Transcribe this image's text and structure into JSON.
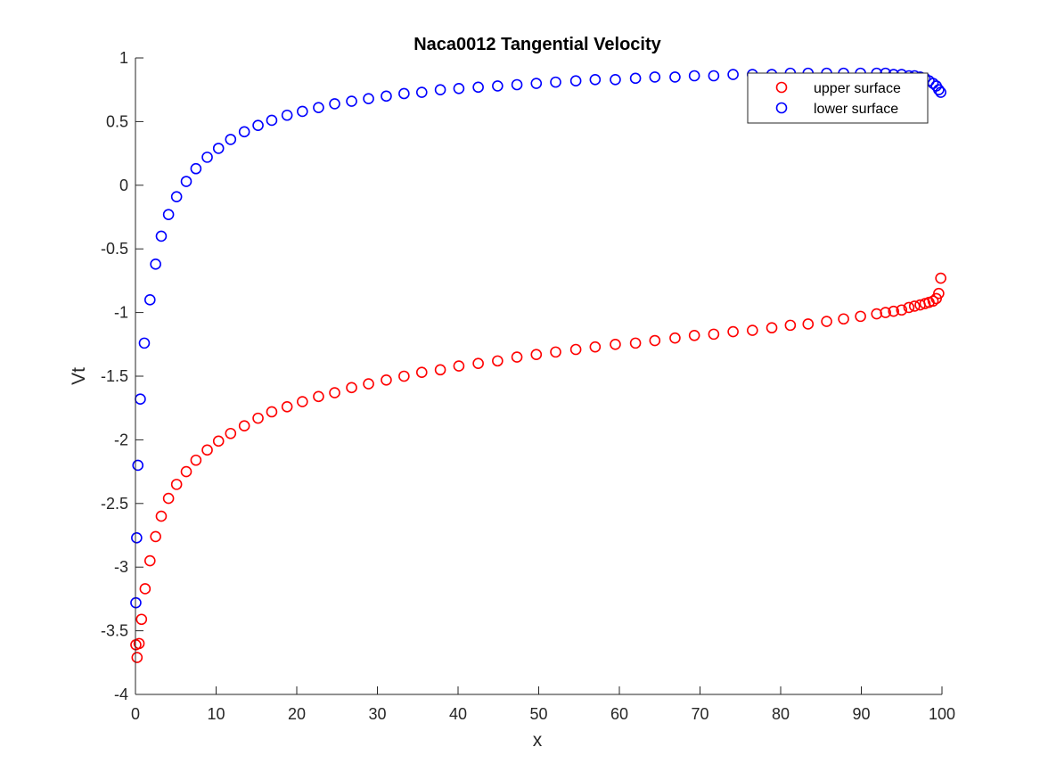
{
  "chart_data": {
    "type": "scatter",
    "title": "Naca0012 Tangential Velocity",
    "xlabel": "x",
    "ylabel": "Vt",
    "xlim": [
      0,
      100
    ],
    "ylim": [
      -4,
      1
    ],
    "xticks": [
      "0",
      "10",
      "20",
      "30",
      "40",
      "50",
      "60",
      "70",
      "80",
      "90",
      "100"
    ],
    "yticks": [
      "-4",
      "-3.5",
      "-3",
      "-2.5",
      "-2",
      "-1.5",
      "-1",
      "-0.5",
      "0",
      "0.5",
      "1"
    ],
    "grid": false,
    "legend_position": "top-right",
    "marker": "open-circle",
    "series": [
      {
        "name": "upper surface",
        "color": "#ff0000",
        "x": [
          0.05,
          0.2,
          0.45,
          0.75,
          1.2,
          1.8,
          2.5,
          3.2,
          4.1,
          5.1,
          6.3,
          7.5,
          8.9,
          10.3,
          11.8,
          13.5,
          15.2,
          16.9,
          18.8,
          20.7,
          22.7,
          24.7,
          26.8,
          28.9,
          31.1,
          33.3,
          35.5,
          37.8,
          40.1,
          42.5,
          44.9,
          47.3,
          49.7,
          52.1,
          54.6,
          57.0,
          59.5,
          62.0,
          64.4,
          66.9,
          69.3,
          71.7,
          74.1,
          76.5,
          78.9,
          81.2,
          83.4,
          85.7,
          87.8,
          89.9,
          91.9,
          93.0,
          94.0,
          95.0,
          95.9,
          96.6,
          97.3,
          97.9,
          98.4,
          98.9,
          99.3,
          99.6,
          99.85
        ],
        "y": [
          -3.61,
          -3.71,
          -3.6,
          -3.41,
          -3.17,
          -2.95,
          -2.76,
          -2.6,
          -2.46,
          -2.35,
          -2.25,
          -2.16,
          -2.08,
          -2.01,
          -1.95,
          -1.89,
          -1.83,
          -1.78,
          -1.74,
          -1.7,
          -1.66,
          -1.63,
          -1.59,
          -1.56,
          -1.53,
          -1.5,
          -1.47,
          -1.45,
          -1.42,
          -1.4,
          -1.38,
          -1.35,
          -1.33,
          -1.31,
          -1.29,
          -1.27,
          -1.25,
          -1.24,
          -1.22,
          -1.2,
          -1.18,
          -1.17,
          -1.15,
          -1.14,
          -1.12,
          -1.1,
          -1.09,
          -1.07,
          -1.05,
          -1.03,
          -1.01,
          -1.0,
          -0.99,
          -0.98,
          -0.96,
          -0.95,
          -0.94,
          -0.93,
          -0.92,
          -0.91,
          -0.89,
          -0.85,
          -0.73
        ]
      },
      {
        "name": "lower surface",
        "color": "#0000ff",
        "x": [
          0.05,
          0.15,
          0.3,
          0.6,
          1.1,
          1.8,
          2.5,
          3.2,
          4.1,
          5.1,
          6.3,
          7.5,
          8.9,
          10.3,
          11.8,
          13.5,
          15.2,
          16.9,
          18.8,
          20.7,
          22.7,
          24.7,
          26.8,
          28.9,
          31.1,
          33.3,
          35.5,
          37.8,
          40.1,
          42.5,
          44.9,
          47.3,
          49.7,
          52.1,
          54.6,
          57.0,
          59.5,
          62.0,
          64.4,
          66.9,
          69.3,
          71.7,
          74.1,
          76.5,
          78.9,
          81.2,
          83.4,
          85.7,
          87.8,
          89.9,
          91.9,
          93.0,
          94.0,
          95.0,
          95.9,
          96.6,
          97.3,
          97.9,
          98.4,
          98.9,
          99.3,
          99.6,
          99.85
        ],
        "y": [
          -3.28,
          -2.77,
          -2.2,
          -1.68,
          -1.24,
          -0.9,
          -0.62,
          -0.4,
          -0.23,
          -0.09,
          0.03,
          0.13,
          0.22,
          0.29,
          0.36,
          0.42,
          0.47,
          0.51,
          0.55,
          0.58,
          0.61,
          0.64,
          0.66,
          0.68,
          0.7,
          0.72,
          0.73,
          0.75,
          0.76,
          0.77,
          0.78,
          0.79,
          0.8,
          0.81,
          0.82,
          0.83,
          0.83,
          0.84,
          0.85,
          0.85,
          0.86,
          0.86,
          0.87,
          0.87,
          0.87,
          0.88,
          0.88,
          0.88,
          0.88,
          0.88,
          0.88,
          0.88,
          0.87,
          0.87,
          0.86,
          0.86,
          0.85,
          0.84,
          0.82,
          0.8,
          0.78,
          0.75,
          0.73
        ]
      }
    ]
  }
}
